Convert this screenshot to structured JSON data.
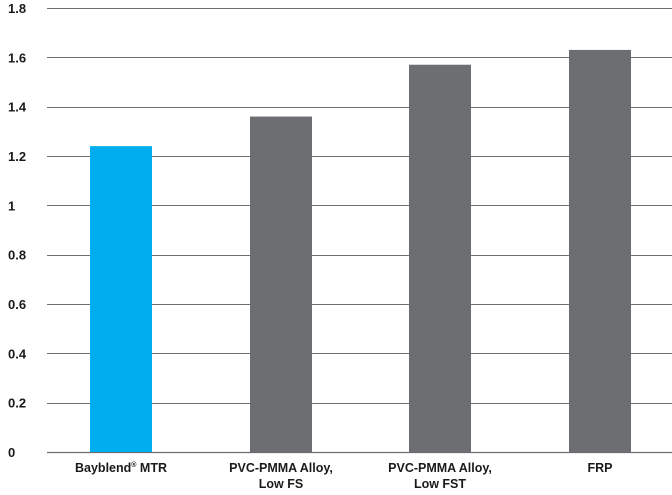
{
  "chart_data": {
    "type": "bar",
    "title": "",
    "xlabel": "",
    "ylabel": "",
    "ylim": [
      0,
      1.8
    ],
    "yticks": [
      "0",
      "0.2",
      "0.4",
      "0.6",
      "0.8",
      "1",
      "1.2",
      "1.4",
      "1.6",
      "1.8"
    ],
    "grid": true,
    "categories": [
      {
        "lines": [
          "Bayblend® MTR"
        ]
      },
      {
        "lines": [
          "PVC-PMMA Alloy,",
          "Low FS"
        ]
      },
      {
        "lines": [
          "PVC-PMMA Alloy,",
          "Low FST"
        ]
      },
      {
        "lines": [
          "FRP"
        ]
      }
    ],
    "values": [
      1.24,
      1.36,
      1.57,
      1.63
    ],
    "bar_colors": [
      "#00AEEF",
      "#6D6E71",
      "#6D6E71",
      "#6D6E71"
    ],
    "grid_color": "#6D6E71"
  }
}
